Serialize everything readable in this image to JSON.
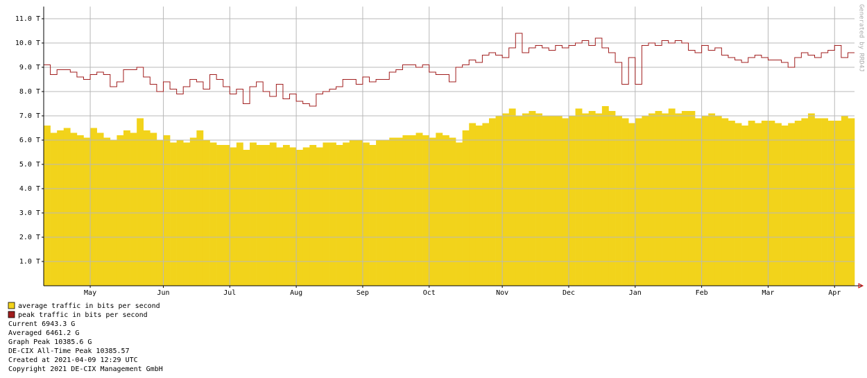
{
  "chart_data": {
    "type": "bar",
    "categories": [
      null,
      null,
      null,
      null,
      null,
      null,
      null,
      "May",
      null,
      null,
      null,
      null,
      null,
      null,
      null,
      null,
      null,
      null,
      "Jun",
      null,
      null,
      null,
      null,
      null,
      null,
      null,
      null,
      null,
      "Jul",
      null,
      null,
      null,
      null,
      null,
      null,
      null,
      null,
      null,
      "Aug",
      null,
      null,
      null,
      null,
      null,
      null,
      null,
      null,
      null,
      "Sep",
      null,
      null,
      null,
      null,
      null,
      null,
      null,
      null,
      null,
      "Oct",
      null,
      null,
      null,
      null,
      null,
      null,
      null,
      null,
      null,
      null,
      "Nov",
      null,
      null,
      null,
      null,
      null,
      null,
      null,
      null,
      null,
      "Dec",
      null,
      null,
      null,
      null,
      null,
      null,
      null,
      null,
      null,
      "Jan",
      null,
      null,
      null,
      null,
      null,
      null,
      null,
      null,
      null,
      "Feb",
      null,
      null,
      null,
      null,
      null,
      null,
      null,
      null,
      null,
      "Mar",
      null,
      null,
      null,
      null,
      null,
      null,
      null,
      null,
      null,
      "Apr",
      null,
      null
    ],
    "series": [
      {
        "name": "average traffic in bits per second",
        "type": "bar",
        "color": "#f2d31b",
        "values": [
          6.6,
          6.3,
          6.4,
          6.5,
          6.3,
          6.2,
          6.1,
          6.5,
          6.3,
          6.1,
          6.0,
          6.2,
          6.4,
          6.3,
          6.9,
          6.4,
          6.3,
          6.0,
          6.2,
          5.9,
          6.0,
          5.9,
          6.1,
          6.4,
          6.0,
          5.9,
          5.8,
          5.8,
          5.7,
          5.9,
          5.6,
          5.9,
          5.8,
          5.8,
          5.9,
          5.7,
          5.8,
          5.7,
          5.6,
          5.7,
          5.8,
          5.7,
          5.9,
          5.9,
          5.8,
          5.9,
          6.0,
          6.0,
          5.9,
          5.8,
          6.0,
          6.0,
          6.1,
          6.1,
          6.2,
          6.2,
          6.3,
          6.2,
          6.1,
          6.3,
          6.2,
          6.1,
          5.9,
          6.4,
          6.7,
          6.6,
          6.7,
          6.9,
          7.0,
          7.1,
          7.3,
          7.0,
          7.1,
          7.2,
          7.1,
          7.0,
          7.0,
          7.0,
          6.9,
          7.0,
          7.3,
          7.1,
          7.2,
          7.1,
          7.4,
          7.2,
          7.0,
          6.9,
          6.7,
          6.9,
          7.0,
          7.1,
          7.2,
          7.1,
          7.3,
          7.1,
          7.2,
          7.2,
          6.9,
          7.0,
          7.1,
          7.0,
          6.9,
          6.8,
          6.7,
          6.6,
          6.8,
          6.7,
          6.8,
          6.8,
          6.7,
          6.6,
          6.7,
          6.8,
          6.9,
          7.1,
          6.9,
          6.9,
          6.8,
          6.8,
          7.0,
          6.9
        ]
      },
      {
        "name": "peak traffic in bits per second",
        "type": "line",
        "color": "#a01d1d",
        "values": [
          9.1,
          8.7,
          8.9,
          8.9,
          8.8,
          8.6,
          8.5,
          8.7,
          8.8,
          8.7,
          8.2,
          8.4,
          8.9,
          8.9,
          9.0,
          8.6,
          8.3,
          8.0,
          8.4,
          8.1,
          7.9,
          8.2,
          8.5,
          8.4,
          8.1,
          8.7,
          8.5,
          8.2,
          7.9,
          8.1,
          7.5,
          8.2,
          8.4,
          8.0,
          7.8,
          8.3,
          7.7,
          7.9,
          7.6,
          7.5,
          7.4,
          7.9,
          8.0,
          8.1,
          8.2,
          8.5,
          8.5,
          8.3,
          8.6,
          8.4,
          8.5,
          8.5,
          8.8,
          8.9,
          9.1,
          9.1,
          9.0,
          9.1,
          8.8,
          8.7,
          8.7,
          8.4,
          9.0,
          9.1,
          9.3,
          9.2,
          9.5,
          9.6,
          9.5,
          9.4,
          9.8,
          10.4,
          9.6,
          9.8,
          9.9,
          9.8,
          9.7,
          9.9,
          9.8,
          9.9,
          10.0,
          10.1,
          9.9,
          10.2,
          9.8,
          9.6,
          9.2,
          8.3,
          9.4,
          8.3,
          9.9,
          10.0,
          9.9,
          10.1,
          10.0,
          10.1,
          10.0,
          9.7,
          9.6,
          9.9,
          9.7,
          9.8,
          9.5,
          9.4,
          9.3,
          9.2,
          9.4,
          9.5,
          9.4,
          9.3,
          9.3,
          9.2,
          9.0,
          9.4,
          9.6,
          9.5,
          9.4,
          9.6,
          9.7,
          9.9,
          9.4,
          9.6
        ]
      }
    ],
    "ylim": [
      0,
      11.5
    ],
    "yticks": [
      {
        "value": 1,
        "label": "1.0 T"
      },
      {
        "value": 2,
        "label": "2.0 T"
      },
      {
        "value": 3,
        "label": "3.0 T"
      },
      {
        "value": 4,
        "label": "4.0 T"
      },
      {
        "value": 5,
        "label": "5.0 T"
      },
      {
        "value": 6,
        "label": "6.0 T"
      },
      {
        "value": 7,
        "label": "7.0 T"
      },
      {
        "value": 8,
        "label": "8.0 T"
      },
      {
        "value": 9,
        "label": "9.0 T"
      },
      {
        "value": 10,
        "label": "10.0 T"
      },
      {
        "value": 11,
        "label": "11.0 T"
      }
    ],
    "grid": true,
    "annotations": [
      "Current 6943.3 G",
      "Averaged 6461.2 G",
      "Graph Peak 10385.6 G",
      "DE-CIX All-Time Peak 10385.57",
      "Created at 2021-04-09 12:29 UTC",
      "Copyright 2021 DE-CIX Management GmbH"
    ],
    "watermark": "Generated by RRD4J"
  }
}
